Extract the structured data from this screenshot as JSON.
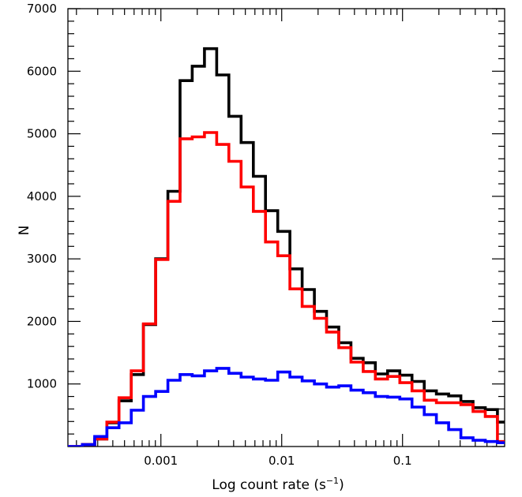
{
  "chart_data": {
    "type": "line",
    "step": true,
    "xscale": "log",
    "xlim": [
      0.00017,
      0.7
    ],
    "ylim": [
      0,
      7000
    ],
    "grid": false,
    "legend": "none",
    "xlabel": "Log count rate (s",
    "xlabel_sup": "−1",
    "xlabel_close": ")",
    "ylabel": "N",
    "x_ticks": [
      {
        "value": 0.001,
        "label": "0.001"
      },
      {
        "value": 0.01,
        "label": "0.01"
      },
      {
        "value": 0.1,
        "label": "0.1"
      }
    ],
    "y_ticks": [
      {
        "value": 1000,
        "label": "1000"
      },
      {
        "value": 2000,
        "label": "2000"
      },
      {
        "value": 3000,
        "label": "3000"
      },
      {
        "value": 4000,
        "label": "4000"
      },
      {
        "value": 5000,
        "label": "5000"
      },
      {
        "value": 6000,
        "label": "6000"
      },
      {
        "value": 7000,
        "label": "7000"
      }
    ],
    "bin_edges": [
      0.00017,
      0.000224,
      0.000283,
      0.000357,
      0.00045,
      0.000568,
      0.000717,
      0.000905,
      0.001142,
      0.001441,
      0.001818,
      0.002295,
      0.002896,
      0.003655,
      0.004612,
      0.00582,
      0.007345,
      0.009269,
      0.011697,
      0.014761,
      0.018628,
      0.023508,
      0.029666,
      0.037437,
      0.047244,
      0.059621,
      0.07524,
      0.094951,
      0.119825,
      0.151215,
      0.190828,
      0.240819,
      0.303905,
      0.383517,
      0.483985,
      0.610773
    ],
    "x_end": 0.7,
    "series": [
      {
        "color": "#000000",
        "values": [
          0,
          30,
          120,
          380,
          730,
          1150,
          1950,
          3000,
          4080,
          5850,
          6080,
          6360,
          5940,
          5280,
          4860,
          4320,
          3770,
          3440,
          2840,
          2510,
          2160,
          1910,
          1660,
          1410,
          1340,
          1160,
          1210,
          1140,
          1040,
          890,
          840,
          810,
          720,
          620,
          590,
          390
        ]
      },
      {
        "color": "#ff0000",
        "values": [
          0,
          30,
          120,
          390,
          780,
          1210,
          1960,
          2990,
          3920,
          4920,
          4950,
          5020,
          4830,
          4560,
          4150,
          3760,
          3270,
          3050,
          2520,
          2240,
          2050,
          1830,
          1580,
          1350,
          1200,
          1080,
          1120,
          1020,
          890,
          740,
          700,
          700,
          670,
          560,
          480,
          80
        ]
      },
      {
        "color": "#0000ff",
        "values": [
          0,
          30,
          160,
          300,
          380,
          580,
          800,
          880,
          1060,
          1150,
          1130,
          1210,
          1250,
          1170,
          1110,
          1080,
          1060,
          1190,
          1110,
          1050,
          1000,
          950,
          970,
          900,
          860,
          800,
          790,
          760,
          630,
          510,
          380,
          270,
          140,
          100,
          80,
          60
        ]
      }
    ]
  }
}
